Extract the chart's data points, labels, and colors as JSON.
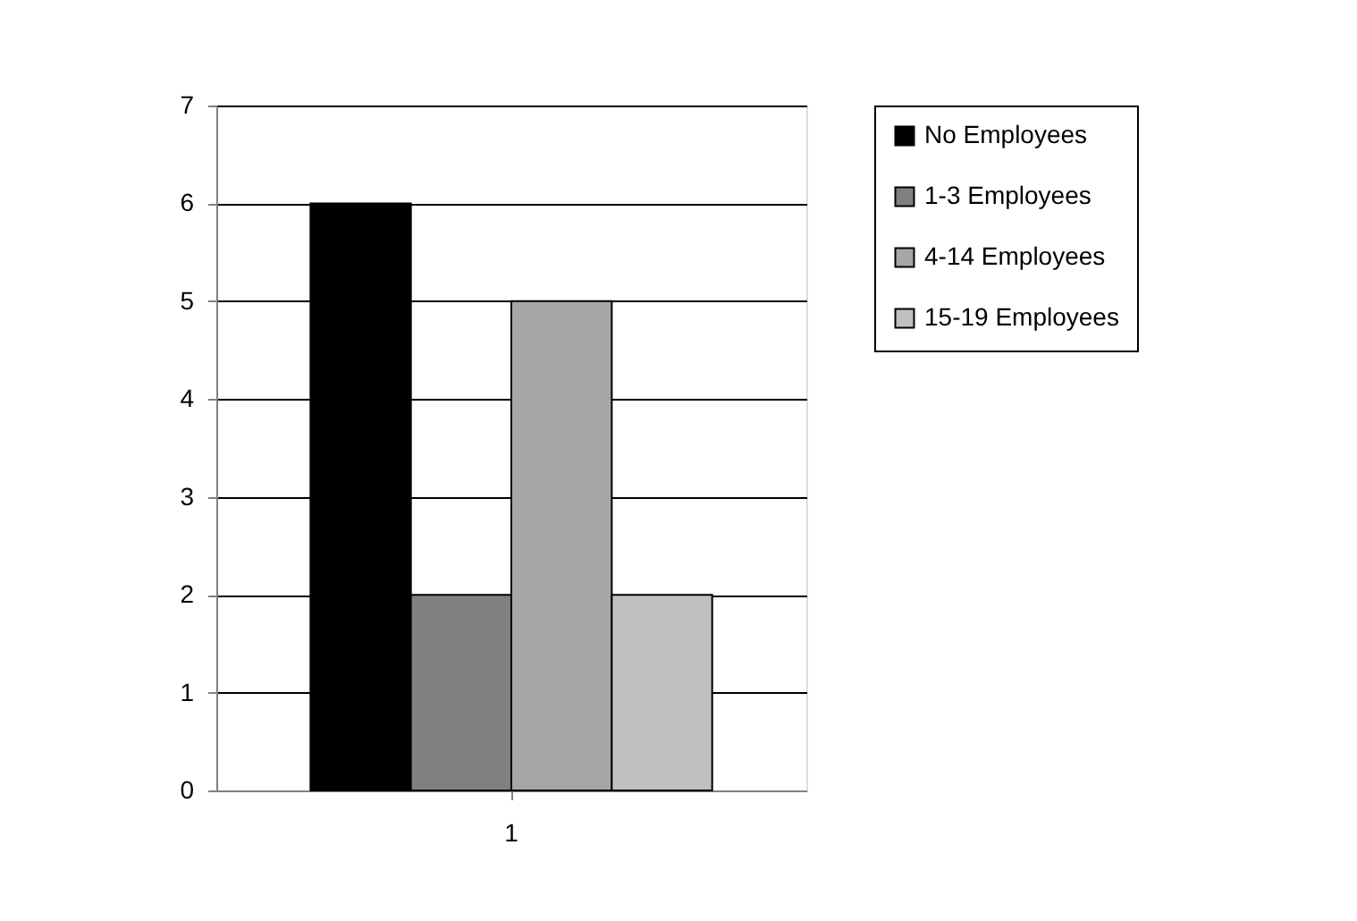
{
  "chart_data": {
    "type": "bar",
    "categories": [
      "1"
    ],
    "series": [
      {
        "name": "No Employees",
        "color": "#000000",
        "values": [
          6
        ]
      },
      {
        "name": "1-3 Employees",
        "color": "#808080",
        "values": [
          2
        ]
      },
      {
        "name": "4-14 Employees",
        "color": "#a6a6a6",
        "values": [
          5
        ]
      },
      {
        "name": "15-19 Employees",
        "color": "#c0c0c0",
        "values": [
          2
        ]
      }
    ],
    "ylim": [
      0,
      7
    ],
    "yticks": [
      0,
      1,
      2,
      3,
      4,
      5,
      6,
      7
    ],
    "grid": "y",
    "legend": "right"
  }
}
